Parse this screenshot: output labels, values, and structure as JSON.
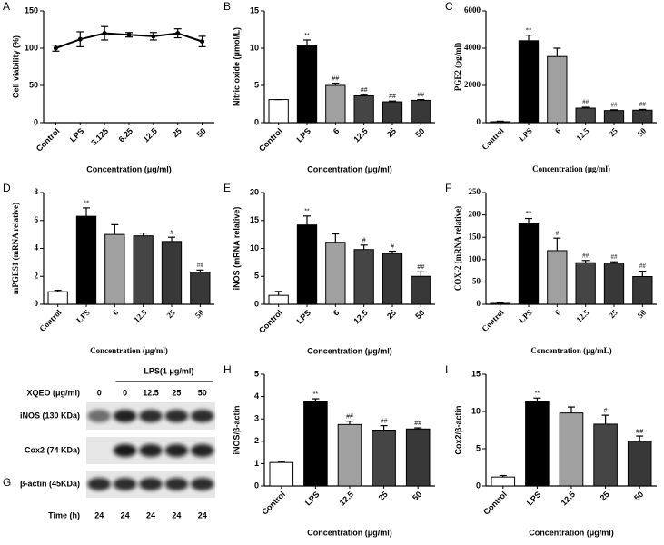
{
  "chart_data": [
    {
      "type": "line",
      "panel": "A",
      "ylabel": "Cell viability (%)",
      "xlabel": "Concentration (μg/ml)",
      "categories": [
        "Control",
        "LPS",
        "3.125",
        "6.25",
        "12.5",
        "25",
        "50"
      ],
      "values": [
        100,
        112,
        120,
        118,
        116,
        120,
        109
      ],
      "errors": [
        4,
        10,
        9,
        3,
        5,
        6,
        7
      ],
      "color": "#000000",
      "ylim": [
        0,
        150
      ],
      "yticks": [
        0,
        50,
        100,
        150
      ]
    },
    {
      "type": "bar",
      "panel": "B",
      "ylabel": "Nitric oxide (μmol/L)",
      "xlabel": "Concentration (μg/ml)",
      "categories": [
        "Control",
        "LPS",
        "6",
        "12.5",
        "25",
        "50"
      ],
      "values": [
        3.1,
        10.3,
        5.0,
        3.6,
        2.8,
        3.0
      ],
      "errors": [
        0,
        0.8,
        0.3,
        0.15,
        0.1,
        0.1
      ],
      "annotations": [
        null,
        "**",
        "##",
        "##",
        "##",
        "##"
      ],
      "colors": [
        "#ffffff",
        "#000000",
        "#a0a0a0",
        "#454545",
        "#383838",
        "#383838"
      ],
      "ylim": [
        0,
        15
      ],
      "yticks": [
        0,
        5,
        10,
        15
      ]
    },
    {
      "type": "bar",
      "panel": "C",
      "ylabel": "PGE2 (pg/ml)",
      "xlabel": "Concentration (μg/ml)",
      "categories": [
        "Control",
        "LPS",
        "6",
        "12.5",
        "25",
        "50"
      ],
      "values": [
        50,
        4400,
        3550,
        780,
        650,
        670
      ],
      "errors": [
        30,
        300,
        450,
        50,
        40,
        40
      ],
      "annotations": [
        null,
        "**",
        null,
        "##",
        "##",
        "##"
      ],
      "colors": [
        "#ffffff",
        "#000000",
        "#a0a0a0",
        "#454545",
        "#383838",
        "#383838"
      ],
      "ylim": [
        0,
        6000
      ],
      "yticks": [
        0,
        2000,
        4000,
        6000
      ]
    },
    {
      "type": "bar",
      "panel": "D",
      "ylabel": "mPGES1 (mRNA relative)",
      "xlabel": "Concentration (μg/ml)",
      "categories": [
        "Control",
        "LPS",
        "6",
        "12.5",
        "25",
        "50"
      ],
      "values": [
        0.9,
        6.3,
        5.0,
        4.9,
        4.5,
        2.3
      ],
      "errors": [
        0.1,
        0.6,
        0.7,
        0.2,
        0.3,
        0.15
      ],
      "annotations": [
        null,
        "**",
        null,
        null,
        "#",
        "##"
      ],
      "colors": [
        "#ffffff",
        "#000000",
        "#a0a0a0",
        "#454545",
        "#383838",
        "#383838"
      ],
      "ylim": [
        0,
        8
      ],
      "yticks": [
        0,
        2,
        4,
        6,
        8
      ]
    },
    {
      "type": "bar",
      "panel": "E",
      "ylabel": "iNOS (mRNA relative)",
      "xlabel": "Concentration (μg/ml)",
      "categories": [
        "Control",
        "LPS",
        "6",
        "12.5",
        "25",
        "50"
      ],
      "values": [
        1.6,
        14.2,
        11.1,
        9.8,
        9.1,
        5.0
      ],
      "errors": [
        0.7,
        1.6,
        1.5,
        0.8,
        0.4,
        0.8
      ],
      "annotations": [
        null,
        "**",
        null,
        "#",
        "#",
        "##"
      ],
      "colors": [
        "#ffffff",
        "#000000",
        "#a0a0a0",
        "#454545",
        "#383838",
        "#383838"
      ],
      "ylim": [
        0,
        20
      ],
      "yticks": [
        0,
        5,
        10,
        15,
        20
      ]
    },
    {
      "type": "bar",
      "panel": "F",
      "ylabel": "COX-2 (mRNA relative)",
      "xlabel": "Concentration (μg/mL)",
      "categories": [
        "Control",
        "LPS",
        "6",
        "12.5",
        "25",
        "50"
      ],
      "values": [
        2,
        180,
        120,
        93,
        92,
        62
      ],
      "errors": [
        1,
        12,
        28,
        5,
        3,
        12
      ],
      "annotations": [
        null,
        "**",
        "#",
        "##",
        "##",
        "##"
      ],
      "colors": [
        "#ffffff",
        "#000000",
        "#a0a0a0",
        "#454545",
        "#383838",
        "#383838"
      ],
      "ylim": [
        0,
        250
      ],
      "yticks": [
        0,
        50,
        100,
        150,
        200,
        250
      ]
    },
    {
      "type": "bar",
      "panel": "H",
      "ylabel": "iNOS/β-actin",
      "xlabel": "Concentration (μg/ml)",
      "categories": [
        "Control",
        "LPS",
        "12.5",
        "25",
        "50"
      ],
      "values": [
        1.05,
        3.8,
        2.75,
        2.5,
        2.55
      ],
      "errors": [
        0.05,
        0.1,
        0.15,
        0.2,
        0.05
      ],
      "annotations": [
        null,
        "**",
        "##",
        "##",
        "##"
      ],
      "colors": [
        "#ffffff",
        "#000000",
        "#a0a0a0",
        "#454545",
        "#383838"
      ],
      "ylim": [
        0,
        5
      ],
      "yticks": [
        0,
        1,
        2,
        3,
        4,
        5
      ]
    },
    {
      "type": "bar",
      "panel": "I",
      "ylabel": "Cox2/β-actin",
      "xlabel": "Concentration (μg/ml)",
      "categories": [
        "Control",
        "LPS",
        "12.5",
        "25",
        "50"
      ],
      "values": [
        1.2,
        11.3,
        9.8,
        8.3,
        6.0
      ],
      "errors": [
        0.2,
        0.5,
        0.8,
        1.2,
        0.7
      ],
      "annotations": [
        null,
        "**",
        null,
        "#",
        "##"
      ],
      "colors": [
        "#ffffff",
        "#000000",
        "#a0a0a0",
        "#454545",
        "#383838"
      ],
      "ylim": [
        0,
        15
      ],
      "yticks": [
        0,
        5,
        10,
        15
      ]
    }
  ],
  "blot": {
    "panel": "G",
    "treatment": "XQEO (μg/ml)",
    "group": "LPS(1 μg/ml)",
    "lanes": [
      "0",
      "0",
      "12.5",
      "25",
      "50"
    ],
    "rows": [
      "iNOS (130 KDa)",
      "Cox2 (74 KDa)",
      "β-actin (45KDa)"
    ],
    "time_label": "Time (h)",
    "times": [
      "24",
      "24",
      "24",
      "24",
      "24"
    ]
  }
}
